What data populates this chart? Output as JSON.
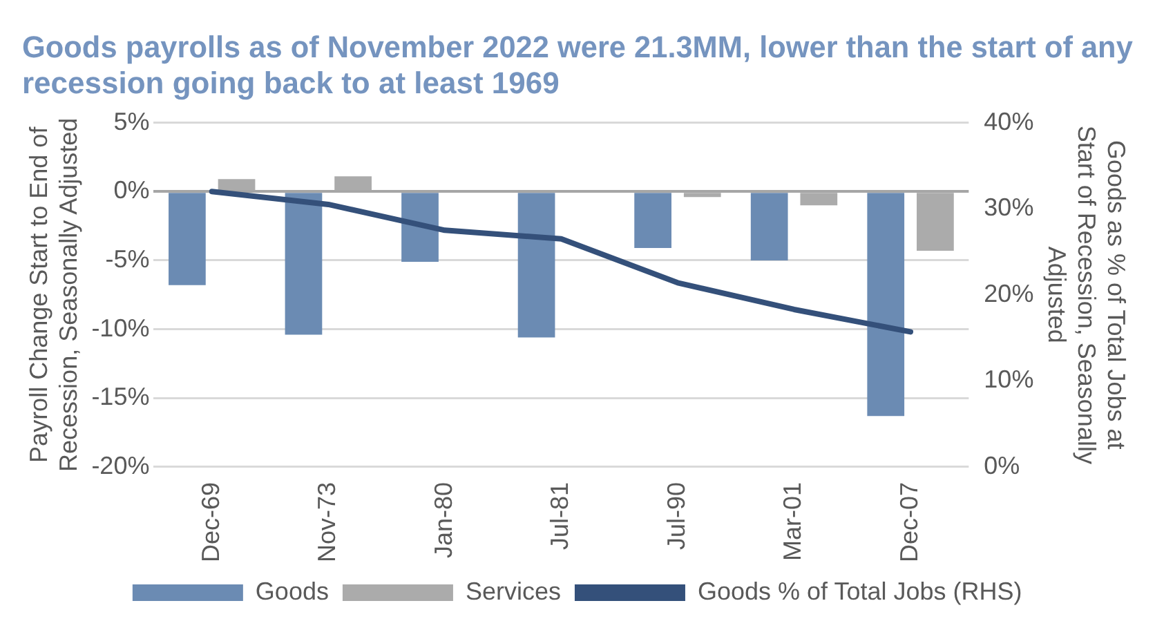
{
  "chart_data": {
    "type": "bar",
    "title": "Goods payrolls as of November 2022 were 21.3MM, lower than the start of any recession going back to at least 1969",
    "ylabel": "Payroll Change Start to End of Recession, Seasonally Adjusted",
    "y2label": "Goods as % of Total Jobs at Start of Recession, Seasonally Adjusted",
    "categories": [
      "Dec-69",
      "Nov-73",
      "Jan-80",
      "Jul-81",
      "Jul-90",
      "Mar-01",
      "Dec-07"
    ],
    "series": [
      {
        "name": "Goods",
        "color": "#6b8bb3",
        "values": [
          -6.8,
          -10.4,
          -5.1,
          -10.6,
          -4.1,
          -5.0,
          -16.3
        ]
      },
      {
        "name": "Services",
        "color": "#ababab",
        "values": [
          0.9,
          1.1,
          0.1,
          0.0,
          -0.4,
          -1.0,
          -4.3
        ]
      },
      {
        "name": "Goods % of Total Jobs (RHS)",
        "type": "line",
        "axis": "y2",
        "color": "#34507a",
        "values": [
          32,
          30.5,
          27.5,
          26.5,
          21.4,
          18.3,
          15.7
        ]
      }
    ],
    "ylim": [
      -20,
      5
    ],
    "yticks": [
      {
        "value": 5,
        "label": "5%"
      },
      {
        "value": 0,
        "label": "0%"
      },
      {
        "value": -5,
        "label": "-5%"
      },
      {
        "value": -10,
        "label": "-10%"
      },
      {
        "value": -15,
        "label": "-15%"
      },
      {
        "value": -20,
        "label": "-20%"
      }
    ],
    "y2lim": [
      0,
      40
    ],
    "y2ticks": [
      {
        "value": 0,
        "label": "0%"
      },
      {
        "value": 10,
        "label": "10%"
      },
      {
        "value": 20,
        "label": "20%"
      },
      {
        "value": 30,
        "label": "30%"
      },
      {
        "value": 40,
        "label": "40%"
      }
    ],
    "grid": "y",
    "legend": "bottom",
    "marker": "none",
    "line_style": "solid"
  }
}
